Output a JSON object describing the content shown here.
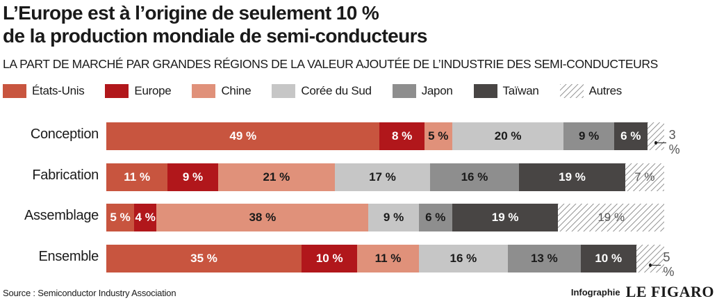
{
  "chart_data": {
    "type": "bar",
    "orientation": "horizontal",
    "stacked": true,
    "title_line1": "L’Europe est à l’origine de seulement 10 %",
    "title_line2": "de la production mondiale de semi-conducteurs",
    "subtitle": "LA PART DE MARCHÉ PAR GRANDES RÉGIONS DE LA VALEUR AJOUTÉE DE L’INDUSTRIE DES SEMI-CONDUCTEURS",
    "xlim": [
      0,
      100
    ],
    "categories": [
      "Conception",
      "Fabrication",
      "Assemblage",
      "Ensemble"
    ],
    "series": [
      {
        "name": "États-Unis",
        "color": "#c8553f",
        "text_color": "#ffffff",
        "values": [
          49,
          11,
          5,
          35
        ],
        "labels": [
          "49 %",
          "11 %",
          "5 %",
          "35 %"
        ]
      },
      {
        "name": "Europe",
        "color": "#b1171b",
        "text_color": "#ffffff",
        "values": [
          8,
          9,
          4,
          10
        ],
        "labels": [
          "8 %",
          "9 %",
          "4 %",
          "10 %"
        ]
      },
      {
        "name": "Chine",
        "color": "#e0917a",
        "text_color": "#1a1a1a",
        "values": [
          5,
          21,
          38,
          11
        ],
        "labels": [
          "5 %",
          "21 %",
          "38 %",
          "11 %"
        ]
      },
      {
        "name": "Corée du Sud",
        "color": "#c6c6c6",
        "text_color": "#1a1a1a",
        "values": [
          20,
          17,
          9,
          16
        ],
        "labels": [
          "20 %",
          "17 %",
          "9 %",
          "16 %"
        ]
      },
      {
        "name": "Japon",
        "color": "#8e8e8e",
        "text_color": "#1a1a1a",
        "values": [
          9,
          16,
          6,
          13
        ],
        "labels": [
          "9 %",
          "16 %",
          "6 %",
          "13 %"
        ]
      },
      {
        "name": "Taïwan",
        "color": "#484544",
        "text_color": "#ffffff",
        "values": [
          6,
          19,
          19,
          10
        ],
        "labels": [
          "6 %",
          "19 %",
          "19 %",
          "10 %"
        ]
      },
      {
        "name": "Autres",
        "color": "hatch",
        "text_color": "#555555",
        "values": [
          3,
          7,
          19,
          5
        ],
        "labels": [
          "3 %",
          "7 %",
          "19 %",
          "5 %"
        ],
        "outside": [
          true,
          false,
          false,
          true
        ]
      }
    ]
  },
  "footer": {
    "source": "Source : Semiconductor Industry Association",
    "credit": "Infographie",
    "logo": "LE FIGARO"
  }
}
